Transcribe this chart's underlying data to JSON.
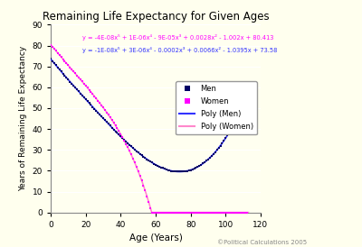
{
  "title": "Remaining Life Expectancy for Given Ages",
  "xlabel": "Age (Years)",
  "ylabel": "Years of Remaining Life Expectancy",
  "xlim": [
    0,
    120
  ],
  "ylim": [
    0,
    90
  ],
  "xticks": [
    0,
    20,
    40,
    60,
    80,
    100,
    120
  ],
  "yticks": [
    0,
    10,
    20,
    30,
    40,
    50,
    60,
    70,
    80,
    90
  ],
  "background_color": "#FFFFEE",
  "plot_bg_color": "#FFFFF0",
  "grid_color": "#DDDDAA",
  "men_color": "#000066",
  "women_color": "#FF00FF",
  "poly_men_color": "#3333FF",
  "poly_women_color": "#FF88CC",
  "men_eq": "y = -1E-08x⁵ + 3E-06x⁴ - 0.0002x³ + 0.0066x² - 1.0395x + 73.58",
  "women_eq": "y = -4E-08x⁵ + 1E-06x⁴ - 9E-05x³ + 0.0028x² - 1.002x + 80.413",
  "copyright": "©Political Calculations 2005",
  "men_coeffs": [
    -1e-08,
    3e-06,
    -0.0002,
    0.0066,
    -1.0395,
    73.58
  ],
  "women_coeffs": [
    -4e-08,
    1e-06,
    -9e-05,
    0.0028,
    -1.002,
    80.413
  ],
  "legend_entries": [
    "Men",
    "Women",
    "Poly (Men)",
    "Poly (Women)"
  ]
}
